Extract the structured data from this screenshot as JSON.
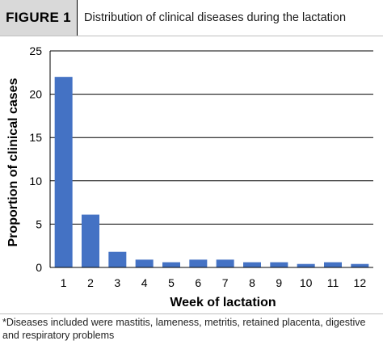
{
  "header": {
    "figure_label": "FIGURE 1",
    "title": "Distribution of clinical diseases during the lactation"
  },
  "chart_data": {
    "type": "bar",
    "categories": [
      "1",
      "2",
      "3",
      "4",
      "5",
      "6",
      "7",
      "8",
      "9",
      "10",
      "11",
      "12"
    ],
    "values": [
      22,
      6.1,
      1.8,
      0.9,
      0.6,
      0.9,
      0.9,
      0.6,
      0.6,
      0.4,
      0.6,
      0.4
    ],
    "xlabel": "Week of lactation",
    "ylabel": "Proportion of clinical cases",
    "ylim": [
      0,
      25
    ],
    "yticks": [
      0,
      5,
      10,
      15,
      20,
      25
    ],
    "grid": true,
    "legend": "none",
    "bar_color": "#4472c4"
  },
  "footnote": "*Diseases included were mastitis, lameness, metritis, retained placenta, digestive and respiratory problems"
}
